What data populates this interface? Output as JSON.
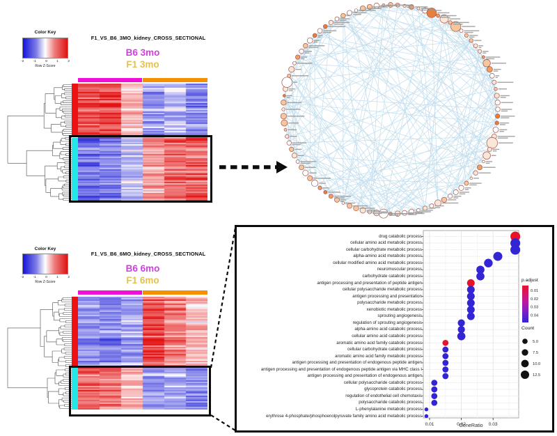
{
  "figure_type": "multi-panel transcriptomics figure",
  "chart_data": [
    {
      "type": "scatter",
      "subtype": "go-enrichment-dotplot",
      "title": "",
      "xlabel": "GeneRatio",
      "x_ticks": [
        0.01,
        0.02,
        0.03
      ],
      "xlim": [
        0.008,
        0.038
      ],
      "grid": true,
      "legend_position": "right",
      "p_adjust_legend": {
        "title": "p.adjust",
        "ticks": [
          0.01,
          0.02,
          0.03,
          0.04
        ],
        "low_color": "#e8132b",
        "high_color": "#3324d4"
      },
      "count_legend": {
        "title": "Count",
        "sizes": [
          5.0,
          7.5,
          10.0,
          12.5
        ]
      },
      "points": [
        {
          "term": "drug catabolic process",
          "gene_ratio": 0.037,
          "p_adjust": 0.005,
          "count": 13
        },
        {
          "term": "cellular amino acid metabolic process",
          "gene_ratio": 0.037,
          "p_adjust": 0.045,
          "count": 13
        },
        {
          "term": "cellular carbohydrate metabolic process",
          "gene_ratio": 0.037,
          "p_adjust": 0.045,
          "count": 13
        },
        {
          "term": "alpha-amino acid metabolic process",
          "gene_ratio": 0.0315,
          "p_adjust": 0.045,
          "count": 11
        },
        {
          "term": "cellular modified amino acid metabolic process",
          "gene_ratio": 0.0285,
          "p_adjust": 0.045,
          "count": 10
        },
        {
          "term": "neuromuscular process",
          "gene_ratio": 0.026,
          "p_adjust": 0.045,
          "count": 9
        },
        {
          "term": "carbohydrate catabolic process",
          "gene_ratio": 0.026,
          "p_adjust": 0.045,
          "count": 9
        },
        {
          "term": "antigen processing and presentation of peptide antigen",
          "gene_ratio": 0.023,
          "p_adjust": 0.005,
          "count": 8
        },
        {
          "term": "cellular polysaccharide metabolic process",
          "gene_ratio": 0.023,
          "p_adjust": 0.045,
          "count": 8
        },
        {
          "term": "antigen processing and presentation",
          "gene_ratio": 0.023,
          "p_adjust": 0.045,
          "count": 8
        },
        {
          "term": "polysaccharide metabolic process",
          "gene_ratio": 0.023,
          "p_adjust": 0.045,
          "count": 8
        },
        {
          "term": "xenobiotic metabolic process",
          "gene_ratio": 0.023,
          "p_adjust": 0.045,
          "count": 8
        },
        {
          "term": "sprouting angiogenesis",
          "gene_ratio": 0.023,
          "p_adjust": 0.045,
          "count": 8
        },
        {
          "term": "regulation of sprouting angiogenesis",
          "gene_ratio": 0.02,
          "p_adjust": 0.045,
          "count": 7
        },
        {
          "term": "alpha-amino acid catabolic process",
          "gene_ratio": 0.02,
          "p_adjust": 0.045,
          "count": 7
        },
        {
          "term": "cellular amino acid catabolic process",
          "gene_ratio": 0.02,
          "p_adjust": 0.045,
          "count": 9
        },
        {
          "term": "aromatic amino acid family catabolic process",
          "gene_ratio": 0.015,
          "p_adjust": 0.005,
          "count": 5
        },
        {
          "term": "cellular carbohydrate catabolic process",
          "gene_ratio": 0.015,
          "p_adjust": 0.045,
          "count": 5
        },
        {
          "term": "aromatic amino acid family metabolic process",
          "gene_ratio": 0.015,
          "p_adjust": 0.045,
          "count": 5
        },
        {
          "term": "antigen processing and presentation of endogenous peptide antigen",
          "gene_ratio": 0.015,
          "p_adjust": 0.045,
          "count": 5
        },
        {
          "term": "antigen processing and presentation of endogenous peptide antigen via MHC class I",
          "gene_ratio": 0.015,
          "p_adjust": 0.045,
          "count": 5
        },
        {
          "term": "antigen processing and presentation of endogenous antigen",
          "gene_ratio": 0.015,
          "p_adjust": 0.045,
          "count": 5
        },
        {
          "term": "cellular polysaccharide catabolic process",
          "gene_ratio": 0.0115,
          "p_adjust": 0.045,
          "count": 5
        },
        {
          "term": "glycoprotein catabolic process",
          "gene_ratio": 0.0115,
          "p_adjust": 0.045,
          "count": 5
        },
        {
          "term": "regulation of endothelial cell chemotaxis",
          "gene_ratio": 0.0115,
          "p_adjust": 0.045,
          "count": 5
        },
        {
          "term": "polysaccharide catabolic process",
          "gene_ratio": 0.0115,
          "p_adjust": 0.045,
          "count": 5
        },
        {
          "term": "L-phenylalanine metabolic process",
          "gene_ratio": 0.009,
          "p_adjust": 0.045,
          "count": 2
        },
        {
          "term": "erythrose 4-phosphate/phosphoenolpyruvate family amino acid metabolic process",
          "gene_ratio": 0.009,
          "p_adjust": 0.045,
          "count": 2
        }
      ]
    },
    {
      "type": "heatmap",
      "id": "heatmap-3mo",
      "title": "F1_VS_B6_3MO_kidney_CROSS_SECTIONAL",
      "color_key": {
        "title": "Color Key",
        "axis_label": "Row Z-Score",
        "ticks": [
          "-2",
          "-1",
          "0",
          "1",
          "2"
        ]
      },
      "groups": [
        {
          "label": "B6 3mo",
          "text_color": "#cf3fe0",
          "bar_color": "#ee10d8"
        },
        {
          "label": "F1 3mo",
          "text_color": "#dfc253",
          "bar_color": "#f59100"
        }
      ],
      "n_columns": 6,
      "cell_colors": {
        "low": "#2020d8",
        "mid": "#ffffff",
        "high": "#e31414"
      },
      "row_clusters": [
        {
          "sidebar_color": "#ee1111",
          "fraction": 0.455,
          "col_means": [
            1.5,
            1.6,
            0.5,
            -0.8,
            -0.5,
            -0.9
          ]
        },
        {
          "sidebar_color": "#22e8e8",
          "fraction": 0.545,
          "col_means": [
            -1.1,
            -0.9,
            -0.35,
            0.7,
            1.2,
            1.3
          ],
          "highlighted": true
        }
      ]
    },
    {
      "type": "heatmap",
      "id": "heatmap-6mo",
      "title": "F1_VS_B6_6MO_kidney_CROSS_SECTIONAL",
      "color_key": {
        "title": "Color Key",
        "axis_label": "Row Z-Score",
        "ticks": [
          "-2",
          "-1",
          "0",
          "1",
          "2"
        ]
      },
      "groups": [
        {
          "label": "B6 6mo",
          "text_color": "#cf3fe0",
          "bar_color": "#ee10d8"
        },
        {
          "label": "F1 6mo",
          "text_color": "#dfc253",
          "bar_color": "#f59100"
        }
      ],
      "n_columns": 6,
      "cell_colors": {
        "low": "#2020d8",
        "mid": "#ffffff",
        "high": "#e31414"
      },
      "row_clusters": [
        {
          "sidebar_color": "#ee1111",
          "fraction": 0.625,
          "col_means": [
            -0.8,
            -0.95,
            -0.6,
            1.5,
            1.0,
            0.45
          ]
        },
        {
          "sidebar_color": "#22e8e8",
          "fraction": 0.375,
          "col_means": [
            1.3,
            1.1,
            0.55,
            -0.8,
            -0.7,
            -1.0
          ],
          "highlighted": true
        }
      ]
    },
    {
      "type": "network-circular",
      "id": "gene-interaction-network",
      "node_count": 96,
      "long_edge_count": 215,
      "rim_edge_count": 55,
      "edge_color": "#b7d8ea",
      "node_stroke_color": "#a2544a",
      "node_fill_palette": [
        "#ffffff",
        "#fbe7d8",
        "#f6c69e",
        "#ef9d62",
        "#e87f3a"
      ],
      "label_color": "#9a9a9a",
      "labels_legible": false
    }
  ],
  "connectors": {
    "arrow_color": "#0b0b0b",
    "highlight_box_color": "#0b0b0b"
  }
}
